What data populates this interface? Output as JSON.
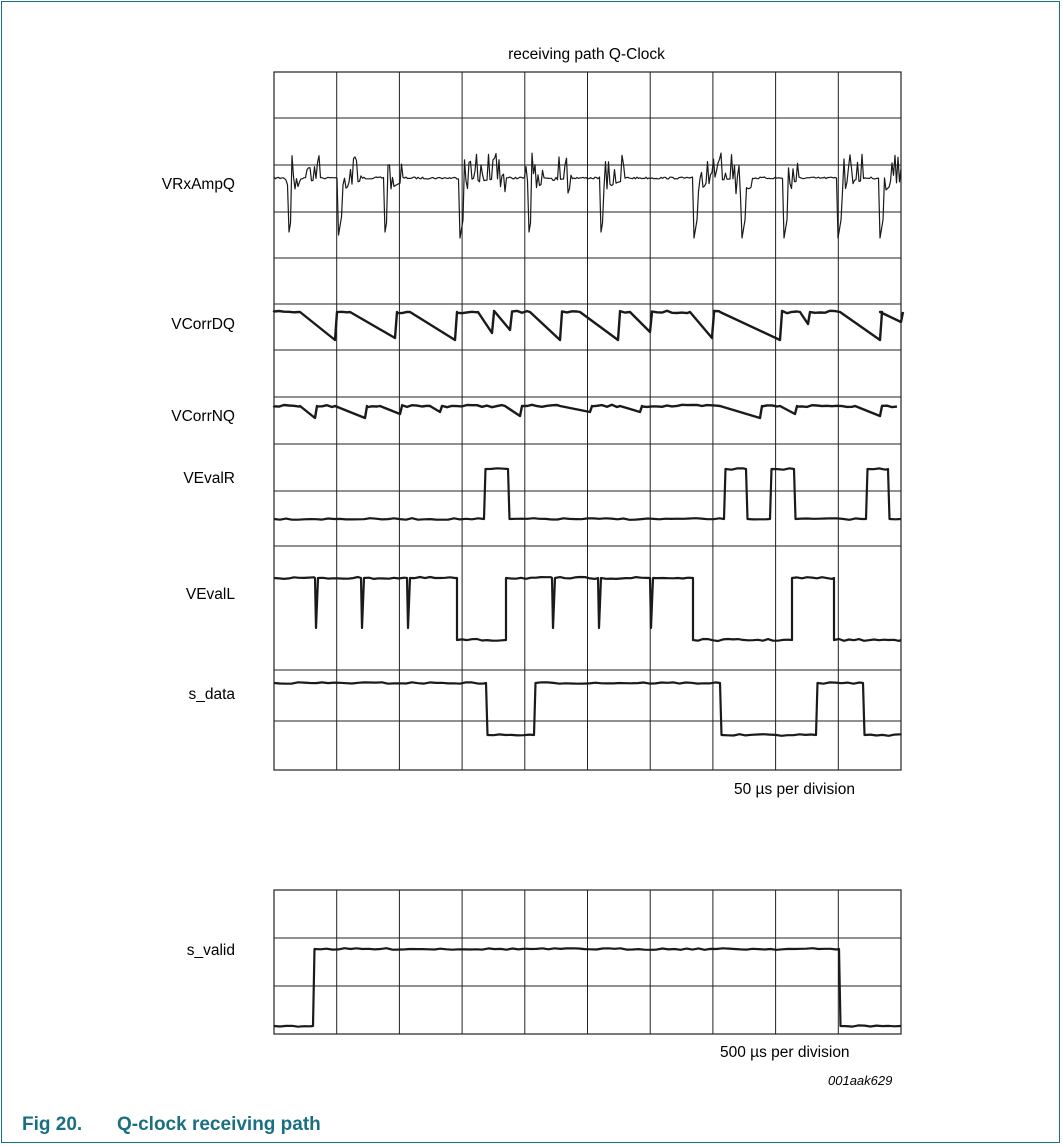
{
  "figure": {
    "title": "receiving path Q-Clock",
    "caption_number": "Fig 20.",
    "caption_text": "Q-clock receiving path",
    "figure_id": "001aak629"
  },
  "upper_scope": {
    "time_scale": "50 µs per division",
    "signals": [
      {
        "key": "vrxampq",
        "label": "VRxAmpQ"
      },
      {
        "key": "vcorrdq",
        "label": "VCorrDQ"
      },
      {
        "key": "vcorrnq",
        "label": "VCorrNQ"
      },
      {
        "key": "vevalr",
        "label": "VEvalR"
      },
      {
        "key": "vevall",
        "label": "VEvalL"
      },
      {
        "key": "s_data",
        "label": "s_data"
      }
    ]
  },
  "lower_scope": {
    "time_scale": "500 µs per division",
    "signals": [
      {
        "key": "s_valid",
        "label": "s_valid"
      }
    ]
  },
  "colors": {
    "accent": "#1b6f82",
    "trace": "#1a1a1a",
    "grid": "#222222"
  }
}
